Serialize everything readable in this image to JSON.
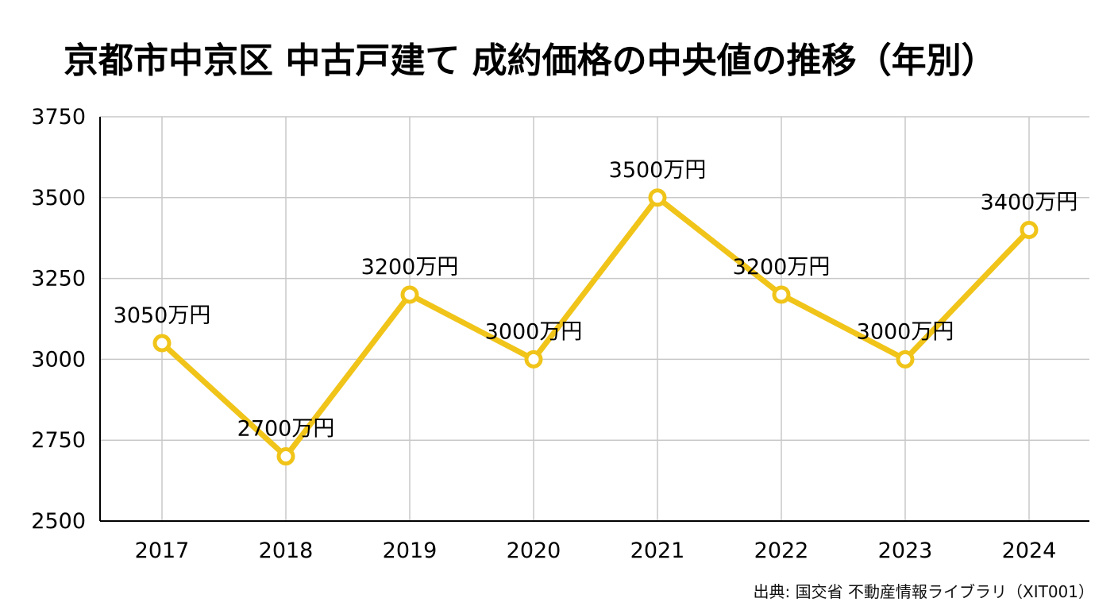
{
  "chart_data": {
    "type": "line",
    "title": "京都市中京区 中古戸建て 成約価格の中央値の推移（年別）",
    "xlabel": "",
    "ylabel": "",
    "categories": [
      "2017",
      "2018",
      "2019",
      "2020",
      "2021",
      "2022",
      "2023",
      "2024"
    ],
    "series": [
      {
        "values": [
          3050,
          2700,
          3200,
          3000,
          3500,
          3200,
          3000,
          3400
        ],
        "labels": [
          "3050万円",
          "2700万円",
          "3200万円",
          "3000万円",
          "3500万円",
          "3200万円",
          "3000万円",
          "3400万円"
        ],
        "color": "#F0C419"
      }
    ],
    "ylim": [
      2500,
      3750
    ],
    "yticks": [
      2500,
      2750,
      3000,
      3250,
      3500,
      3750
    ],
    "grid": true,
    "legend": "none"
  },
  "source": "出典: 国交省 不動産情報ライブラリ（XIT001）",
  "colors": {
    "line": "#F0C419",
    "grid": "#c8c8c8",
    "axis": "#000000"
  }
}
